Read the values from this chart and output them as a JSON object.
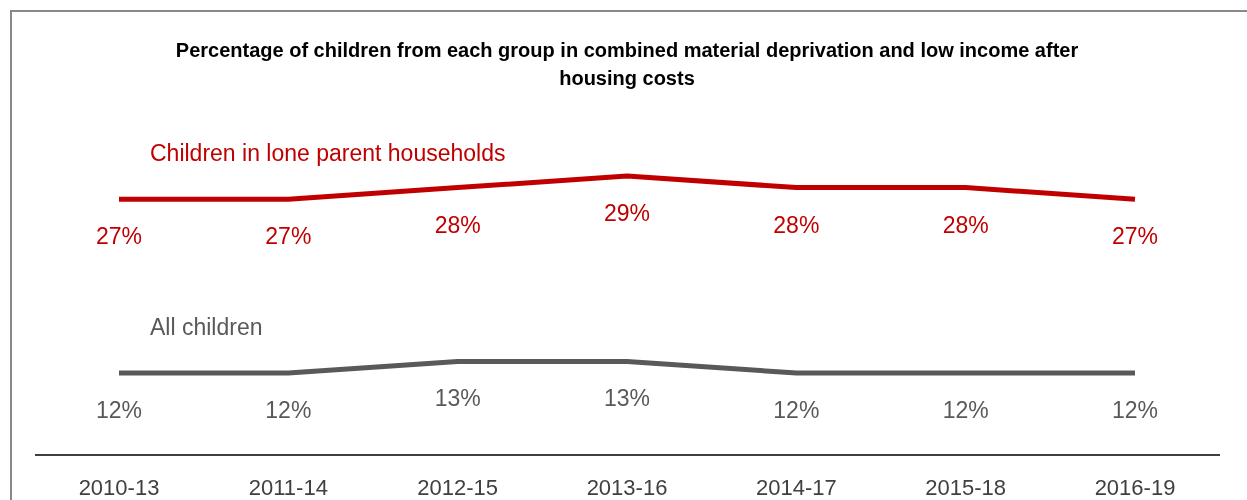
{
  "chart_data": {
    "type": "line",
    "title": "Percentage of children from each group in combined material deprivation and low income after housing costs",
    "categories": [
      "2010-13",
      "2011-14",
      "2012-15",
      "2013-16",
      "2014-17",
      "2015-18",
      "2016-19"
    ],
    "series": [
      {
        "name": "Children in lone parent households",
        "color": "#c00000",
        "values": [
          27,
          27,
          28,
          29,
          28,
          28,
          27
        ],
        "value_labels": [
          "27%",
          "27%",
          "28%",
          "29%",
          "28%",
          "28%",
          "27%"
        ]
      },
      {
        "name": "All children",
        "color": "#595959",
        "values": [
          12,
          12,
          13,
          13,
          12,
          12,
          12
        ],
        "value_labels": [
          "12%",
          "12%",
          "13%",
          "13%",
          "12%",
          "12%",
          "12%"
        ]
      }
    ]
  }
}
